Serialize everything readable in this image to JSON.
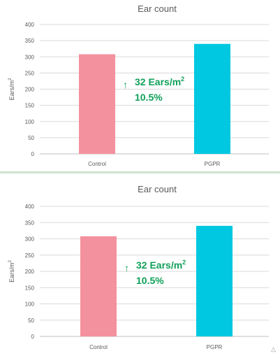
{
  "chart_data": [
    {
      "type": "bar",
      "title": "Ear count",
      "ylabel": "Ears/m²",
      "ylabel_main": "Ears/m",
      "ylabel_sup": "2",
      "categories": [
        "Control",
        "PGPR"
      ],
      "values": [
        308,
        340
      ],
      "ylim": [
        0,
        400
      ],
      "yticks": [
        0,
        50,
        100,
        150,
        200,
        250,
        300,
        350,
        400
      ],
      "grid": true,
      "colors": [
        "#f4919e",
        "#00c8e0"
      ],
      "annotation": {
        "arrow": "↑",
        "line1": "32 Ears/m",
        "line1_sup": "2",
        "line2": "10.5%",
        "color": "#10a05a"
      }
    },
    {
      "type": "bar",
      "title": "Ear count",
      "ylabel": "Ears/m²",
      "ylabel_main": "Ears/m",
      "ylabel_sup": "2",
      "categories": [
        "Control",
        "PGPR"
      ],
      "values": [
        308,
        340
      ],
      "ylim": [
        0,
        400
      ],
      "yticks": [
        0,
        50,
        100,
        150,
        200,
        250,
        300,
        350,
        400
      ],
      "grid": true,
      "colors": [
        "#f4919e",
        "#00c8e0"
      ],
      "annotation": {
        "arrow": "↑",
        "line1": "32 Ears/m",
        "line1_sup": "2",
        "line2": "10.5%",
        "color": "#10a05a"
      }
    }
  ],
  "corner_icon": "warning-triangle-icon"
}
